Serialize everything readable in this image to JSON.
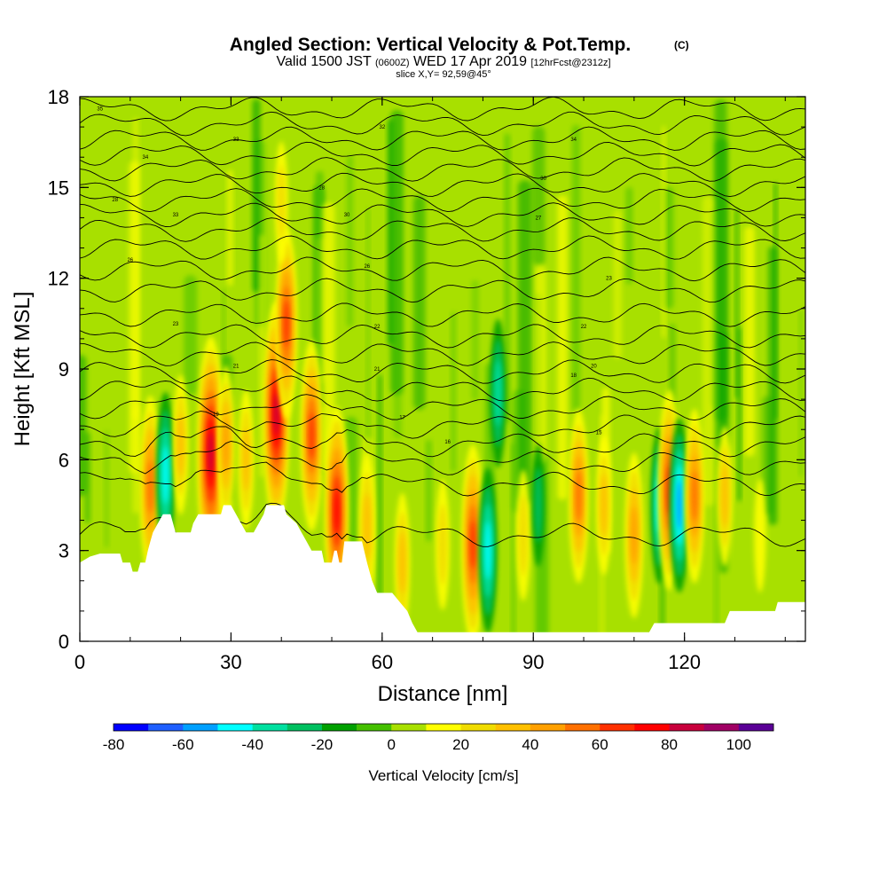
{
  "chart_data": {
    "type": "heatmap",
    "title": "Angled Section: Vertical Velocity & Pot.Temp.",
    "title_tag": "(C)",
    "subtitle_parts": [
      "Valid 1500 JST ",
      "(0600Z)",
      " WED 17 Apr 2019 ",
      "[12hrFcst@2312z]"
    ],
    "slice_info": "slice X,Y= 92,59@45°",
    "xlabel": "Distance [nm]",
    "ylabel": "Height [Kft MSL]",
    "xlim": [
      0,
      144
    ],
    "ylim": [
      0,
      18
    ],
    "xticks": [
      "0",
      "30",
      "60",
      "90",
      "120"
    ],
    "yticks": [
      "0",
      "3",
      "6",
      "9",
      "12",
      "15",
      "18"
    ],
    "colorbar": {
      "label": "Vertical Velocity [cm/s]",
      "ticks": [
        "-80",
        "-60",
        "-40",
        "-20",
        "0",
        "20",
        "40",
        "60",
        "80",
        "100"
      ],
      "bounds": [
        -80,
        110
      ],
      "colors": [
        "#0000ff",
        "#1f5fff",
        "#00a0ff",
        "#00ffff",
        "#00e0a0",
        "#00c060",
        "#00a000",
        "#44c000",
        "#a8e000",
        "#ffff00",
        "#f0dc00",
        "#ffc000",
        "#ffa000",
        "#ff7000",
        "#ff3000",
        "#ff0000",
        "#c8003c",
        "#a00064",
        "#5a0096"
      ]
    },
    "terrain_kft": [
      [
        0,
        2.6
      ],
      [
        2,
        2.8
      ],
      [
        4,
        2.9
      ],
      [
        8,
        2.9
      ],
      [
        8.5,
        2.6
      ],
      [
        10,
        2.6
      ],
      [
        10.5,
        2.3
      ],
      [
        11.5,
        2.3
      ],
      [
        12,
        2.6
      ],
      [
        13,
        2.6
      ],
      [
        13.5,
        3.0
      ],
      [
        14,
        3.3
      ],
      [
        14.5,
        3.6
      ],
      [
        15.5,
        3.9
      ],
      [
        16.5,
        4.2
      ],
      [
        18,
        4.2
      ],
      [
        18.5,
        3.9
      ],
      [
        19,
        3.6
      ],
      [
        22,
        3.6
      ],
      [
        22.5,
        3.9
      ],
      [
        23.5,
        4.2
      ],
      [
        28,
        4.2
      ],
      [
        28.5,
        4.5
      ],
      [
        30,
        4.5
      ],
      [
        31,
        4.2
      ],
      [
        32,
        3.9
      ],
      [
        33,
        3.6
      ],
      [
        34.5,
        3.6
      ],
      [
        35.5,
        3.9
      ],
      [
        36.5,
        4.2
      ],
      [
        37,
        4.5
      ],
      [
        40.5,
        4.5
      ],
      [
        41,
        4.2
      ],
      [
        43,
        3.9
      ],
      [
        44,
        3.6
      ],
      [
        45,
        3.3
      ],
      [
        46,
        3.0
      ],
      [
        48,
        3.0
      ],
      [
        48.5,
        2.6
      ],
      [
        50,
        2.6
      ],
      [
        50.5,
        3.0
      ],
      [
        51,
        3.0
      ],
      [
        51.5,
        2.6
      ],
      [
        52,
        2.6
      ],
      [
        52.5,
        3.3
      ],
      [
        56,
        3.3
      ],
      [
        57,
        2.6
      ],
      [
        57.5,
        2.3
      ],
      [
        58,
        2.0
      ],
      [
        59,
        1.6
      ],
      [
        62,
        1.6
      ],
      [
        63.5,
        1.3
      ],
      [
        65,
        1.0
      ],
      [
        66,
        0.6
      ],
      [
        67,
        0.3
      ],
      [
        113,
        0.3
      ],
      [
        114,
        0.6
      ],
      [
        128,
        0.6
      ],
      [
        129,
        1.0
      ],
      [
        138,
        1.0
      ],
      [
        138.5,
        1.3
      ],
      [
        144,
        1.3
      ]
    ],
    "vertical_velocity_cm_s": [
      {
        "x": 14,
        "z": 5.1,
        "w": 50
      },
      {
        "x": 17,
        "z": 5.5,
        "w": -40
      },
      {
        "x": 20,
        "z": 6.5,
        "w": 25
      },
      {
        "x": 26,
        "z": 6.2,
        "w": 80
      },
      {
        "x": 29,
        "z": 6.5,
        "w": 35
      },
      {
        "x": 33,
        "z": 6.0,
        "w": 25
      },
      {
        "x": 39,
        "z": 7.5,
        "w": 75
      },
      {
        "x": 46,
        "z": 6.8,
        "w": 55
      },
      {
        "x": 51,
        "z": 4.3,
        "w": 65
      },
      {
        "x": 57,
        "z": 3.8,
        "w": 30
      },
      {
        "x": 64,
        "z": 2.6,
        "w": 25
      },
      {
        "x": 72,
        "z": 3.2,
        "w": 20
      },
      {
        "x": 78,
        "z": 3.2,
        "w": 60
      },
      {
        "x": 81,
        "z": 3.0,
        "w": -40
      },
      {
        "x": 83,
        "z": 8.2,
        "w": -30
      },
      {
        "x": 88,
        "z": 3.5,
        "w": 20
      },
      {
        "x": 91,
        "z": 4.5,
        "w": -15
      },
      {
        "x": 99,
        "z": 4.8,
        "w": 45
      },
      {
        "x": 104,
        "z": 4.5,
        "w": 25
      },
      {
        "x": 110,
        "z": 3.5,
        "w": 40
      },
      {
        "x": 115,
        "z": 4.5,
        "w": -35
      },
      {
        "x": 117,
        "z": 5.0,
        "w": 60
      },
      {
        "x": 119,
        "z": 4.5,
        "w": -45
      },
      {
        "x": 122,
        "z": 4.8,
        "w": 45
      },
      {
        "x": 128,
        "z": 4.8,
        "w": 25
      },
      {
        "x": 135,
        "z": 3.5,
        "w": 10
      },
      {
        "x": 41,
        "z": 10.5,
        "w": 55
      },
      {
        "x": 40,
        "z": 14.5,
        "w": 15
      }
    ],
    "pot_temp_isentropes_kft": [
      3.5,
      5.2,
      5.9,
      6.5,
      7.1,
      7.7,
      8.3,
      8.9,
      9.5,
      10.1,
      10.8,
      11.6,
      12.3,
      13.0,
      13.6,
      14.1,
      14.6,
      15.1,
      15.6,
      16.1,
      16.6,
      17.1,
      17.6
    ],
    "isentrope_labels": [
      {
        "x": 4,
        "z": 17.6,
        "text": "35"
      },
      {
        "x": 31,
        "z": 16.6,
        "text": "33"
      },
      {
        "x": 60,
        "z": 17.0,
        "text": "32"
      },
      {
        "x": 98,
        "z": 16.6,
        "text": "34"
      },
      {
        "x": 13,
        "z": 16.0,
        "text": "34"
      },
      {
        "x": 48,
        "z": 15.0,
        "text": "28"
      },
      {
        "x": 92,
        "z": 15.3,
        "text": "30"
      },
      {
        "x": 7,
        "z": 14.6,
        "text": "28"
      },
      {
        "x": 19,
        "z": 14.1,
        "text": "33"
      },
      {
        "x": 53,
        "z": 14.1,
        "text": "30"
      },
      {
        "x": 91,
        "z": 14.0,
        "text": "27"
      },
      {
        "x": 10,
        "z": 12.6,
        "text": "26"
      },
      {
        "x": 57,
        "z": 12.4,
        "text": "26"
      },
      {
        "x": 105,
        "z": 12.0,
        "text": "23"
      },
      {
        "x": 19,
        "z": 10.5,
        "text": "23"
      },
      {
        "x": 59,
        "z": 10.4,
        "text": "22"
      },
      {
        "x": 100,
        "z": 10.4,
        "text": "22"
      },
      {
        "x": 31,
        "z": 9.1,
        "text": "21"
      },
      {
        "x": 59,
        "z": 9.0,
        "text": "21"
      },
      {
        "x": 102,
        "z": 9.1,
        "text": "20"
      },
      {
        "x": 98,
        "z": 8.8,
        "text": "18"
      },
      {
        "x": 27,
        "z": 7.5,
        "text": "19"
      },
      {
        "x": 64,
        "z": 7.4,
        "text": "17"
      },
      {
        "x": 73,
        "z": 6.6,
        "text": "16"
      },
      {
        "x": 103,
        "z": 6.9,
        "text": "15"
      }
    ]
  }
}
